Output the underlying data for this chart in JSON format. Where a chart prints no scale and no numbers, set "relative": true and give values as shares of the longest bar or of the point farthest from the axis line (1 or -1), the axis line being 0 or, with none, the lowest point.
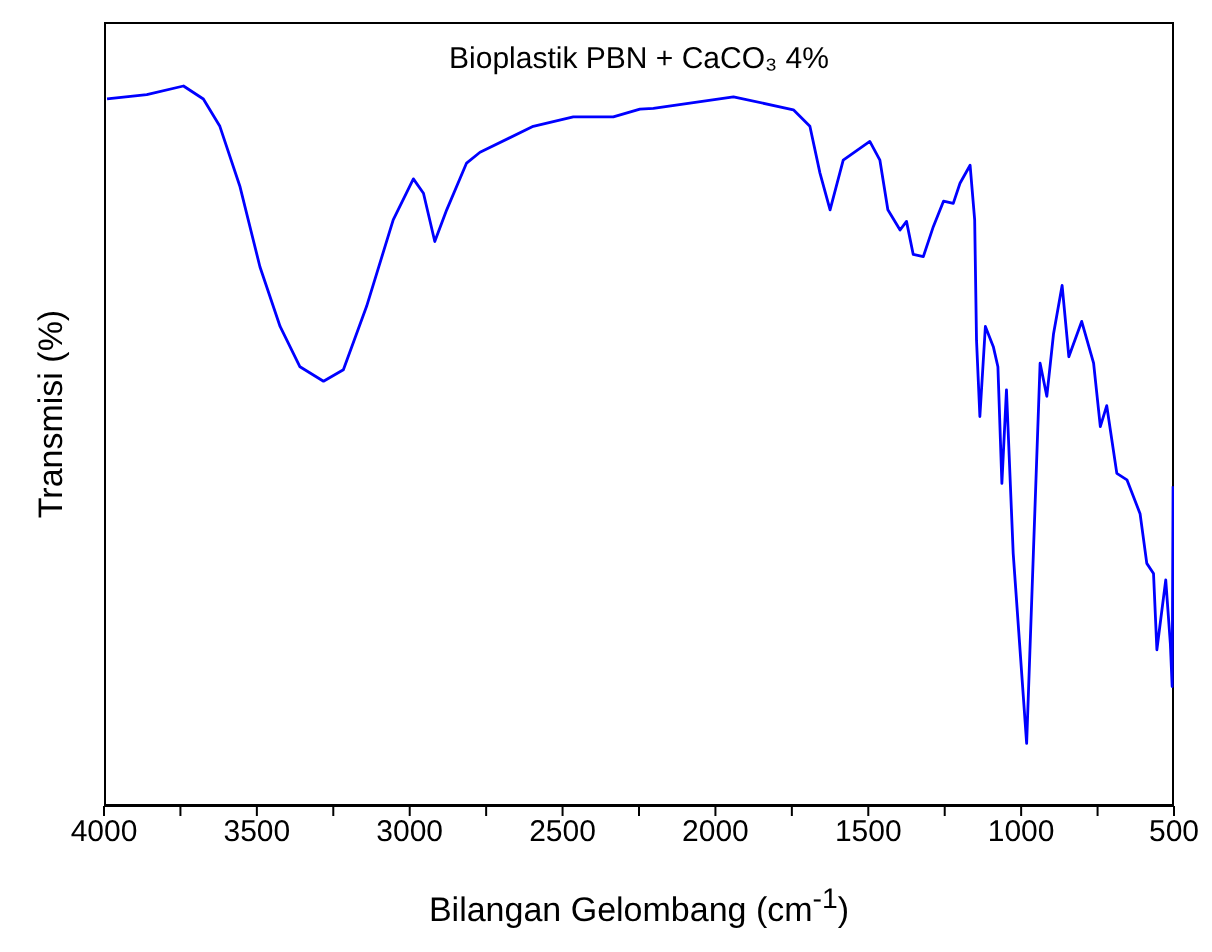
{
  "chart_data": {
    "type": "line",
    "title": "Bioplastik PBN + CaCO₃ 4%",
    "xlabel": "Bilangan Gelombang (cm$^{-1}$)",
    "ylabel": "Transmisi (%)",
    "relative": true,
    "x": [
      3990,
      3860,
      3740,
      3675,
      3621,
      3555,
      3490,
      3424,
      3359,
      3282,
      3217,
      3141,
      3054,
      2988,
      2955,
      2918,
      2879,
      2814,
      2770,
      2596,
      2465,
      2334,
      2247,
      2203,
      1941,
      1745,
      1691,
      1658,
      1625,
      1582,
      1495,
      1462,
      1436,
      1396,
      1375,
      1353,
      1320,
      1287,
      1254,
      1222,
      1200,
      1167,
      1152,
      1146,
      1135,
      1117,
      1091,
      1076,
      1063,
      1048,
      1026,
      982,
      960,
      938,
      916,
      894,
      866,
      844,
      802,
      763,
      741,
      720,
      687,
      654,
      611,
      589,
      567,
      556,
      527,
      512,
      506,
      503
    ],
    "xlim": [
      4000,
      500
    ],
    "xticks": [
      4000,
      {
        "value": 3750,
        "label": null
      },
      3500,
      {
        "value": 3250,
        "label": null
      },
      3000,
      {
        "value": 2750,
        "label": null
      },
      2500,
      {
        "value": 2250,
        "label": null
      },
      2000,
      {
        "value": 1750,
        "label": null
      },
      1500,
      {
        "value": 1250,
        "label": null
      },
      1000,
      {
        "value": 750,
        "label": null
      },
      500
    ],
    "series": [
      {
        "color": "#0000ff",
        "values": [
          0.982,
          0.988,
          1,
          0.982,
          0.944,
          0.86,
          0.749,
          0.666,
          0.61,
          0.59,
          0.606,
          0.694,
          0.814,
          0.871,
          0.851,
          0.784,
          0.828,
          0.893,
          0.908,
          0.944,
          0.957,
          0.957,
          0.968,
          0.969,
          0.985,
          0.967,
          0.944,
          0.879,
          0.828,
          0.897,
          0.923,
          0.897,
          0.828,
          0.8,
          0.812,
          0.766,
          0.763,
          0.805,
          0.84,
          0.837,
          0.865,
          0.89,
          0.814,
          0.647,
          0.541,
          0.666,
          0.638,
          0.61,
          0.448,
          0.578,
          0.351,
          0.087,
          0.351,
          0.615,
          0.569,
          0.656,
          0.723,
          0.624,
          0.673,
          0.615,
          0.527,
          0.556,
          0.462,
          0.453,
          0.406,
          0.337,
          0.323,
          0.217,
          0.314,
          0.226,
          0.166,
          0.444
        ]
      }
    ],
    "grid": false,
    "legend": false,
    "marker": "none",
    "line_style": "solid"
  }
}
